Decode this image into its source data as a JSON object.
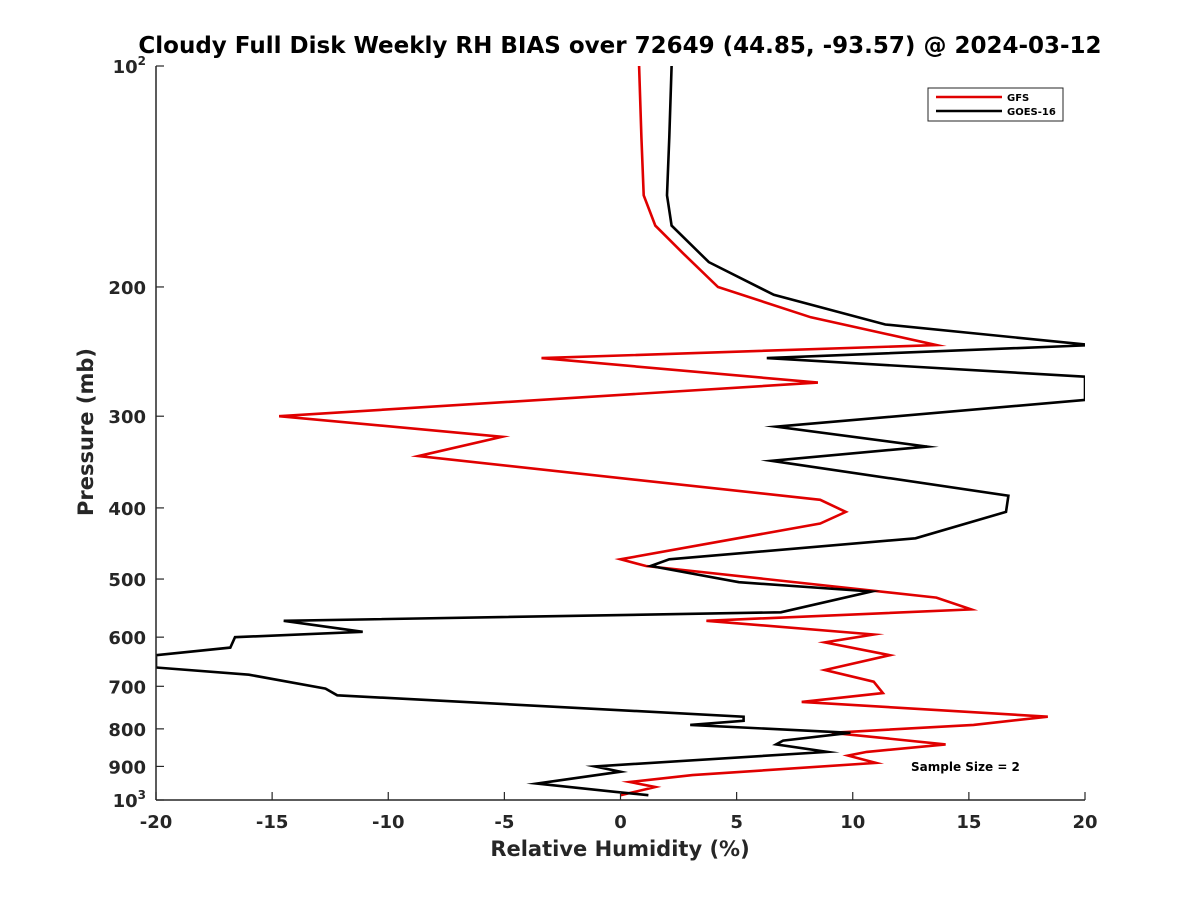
{
  "chart_data": {
    "type": "line",
    "title": "Cloudy Full Disk Weekly RH BIAS over 72649 (44.85, -93.57) @ 2024-03-12",
    "xlabel": "Relative Humidity (%)",
    "ylabel": "Pressure (mb)",
    "xlim": [
      -20,
      20
    ],
    "ylim": [
      100,
      1000
    ],
    "yscale": "log",
    "y_reversed": true,
    "grid": false,
    "legend_position": "top-right",
    "annotation": "Sample Size = 2",
    "x_ticks": [
      "-20",
      "-15",
      "-10",
      "-5",
      "0",
      "5",
      "10",
      "15",
      "20"
    ],
    "y_ticks": [
      {
        "value": 100,
        "base": "10",
        "exp": "2"
      },
      {
        "value": 200,
        "base": "200",
        "exp": ""
      },
      {
        "value": 300,
        "base": "300",
        "exp": ""
      },
      {
        "value": 400,
        "base": "400",
        "exp": ""
      },
      {
        "value": 500,
        "base": "500",
        "exp": ""
      },
      {
        "value": 600,
        "base": "600",
        "exp": ""
      },
      {
        "value": 700,
        "base": "700",
        "exp": ""
      },
      {
        "value": 800,
        "base": "800",
        "exp": ""
      },
      {
        "value": 900,
        "base": "900",
        "exp": ""
      },
      {
        "value": 1000,
        "base": "10",
        "exp": "3"
      }
    ],
    "series": [
      {
        "name": "GFS",
        "color": "#e00000",
        "x": [
          0.8,
          0.9,
          1.0,
          1.5,
          2.7,
          4.2,
          8.2,
          13.6,
          -3.4,
          8.5,
          -14.7,
          -5.1,
          -8.7,
          8.6,
          9.7,
          8.6,
          0.0,
          1.1,
          13.6,
          15.1,
          3.7,
          10.9,
          8.8,
          11.6,
          8.8,
          10.9,
          11.3,
          7.8,
          18.4,
          15.2,
          9.1,
          14.0,
          10.6,
          9.8,
          11.0,
          3.1,
          0.4,
          1.5,
          0.0
        ],
        "y": [
          100,
          125,
          150,
          165,
          180,
          200,
          220,
          240,
          250,
          270,
          300,
          320,
          340,
          390,
          405,
          420,
          470,
          480,
          530,
          550,
          570,
          595,
          610,
          635,
          665,
          690,
          715,
          735,
          770,
          790,
          810,
          840,
          860,
          870,
          890,
          925,
          945,
          960,
          985
        ]
      },
      {
        "name": "GOES-16",
        "color": "#000000",
        "x": [
          2.2,
          2.1,
          2.0,
          2.2,
          3.8,
          6.6,
          11.4,
          20.3,
          6.3,
          20.0,
          20.0,
          6.7,
          13.2,
          6.5,
          16.7,
          16.6,
          12.7,
          2.1,
          1.3,
          5.1,
          10.8,
          6.9,
          -14.5,
          -11.1,
          -16.6,
          -16.8,
          -20.0,
          -20.0,
          -16.0,
          -12.7,
          -12.2,
          5.3,
          5.3,
          3.0,
          9.9,
          7.0,
          6.7,
          8.9,
          -1.1,
          0.0,
          -3.6,
          -0.2,
          1.2
        ],
        "y": [
          100,
          125,
          150,
          165,
          185,
          205,
          225,
          240,
          250,
          265,
          285,
          310,
          330,
          345,
          385,
          405,
          440,
          470,
          480,
          505,
          520,
          555,
          570,
          590,
          600,
          620,
          635,
          660,
          675,
          705,
          720,
          770,
          780,
          790,
          810,
          830,
          840,
          860,
          900,
          915,
          950,
          975,
          985
        ]
      }
    ]
  }
}
